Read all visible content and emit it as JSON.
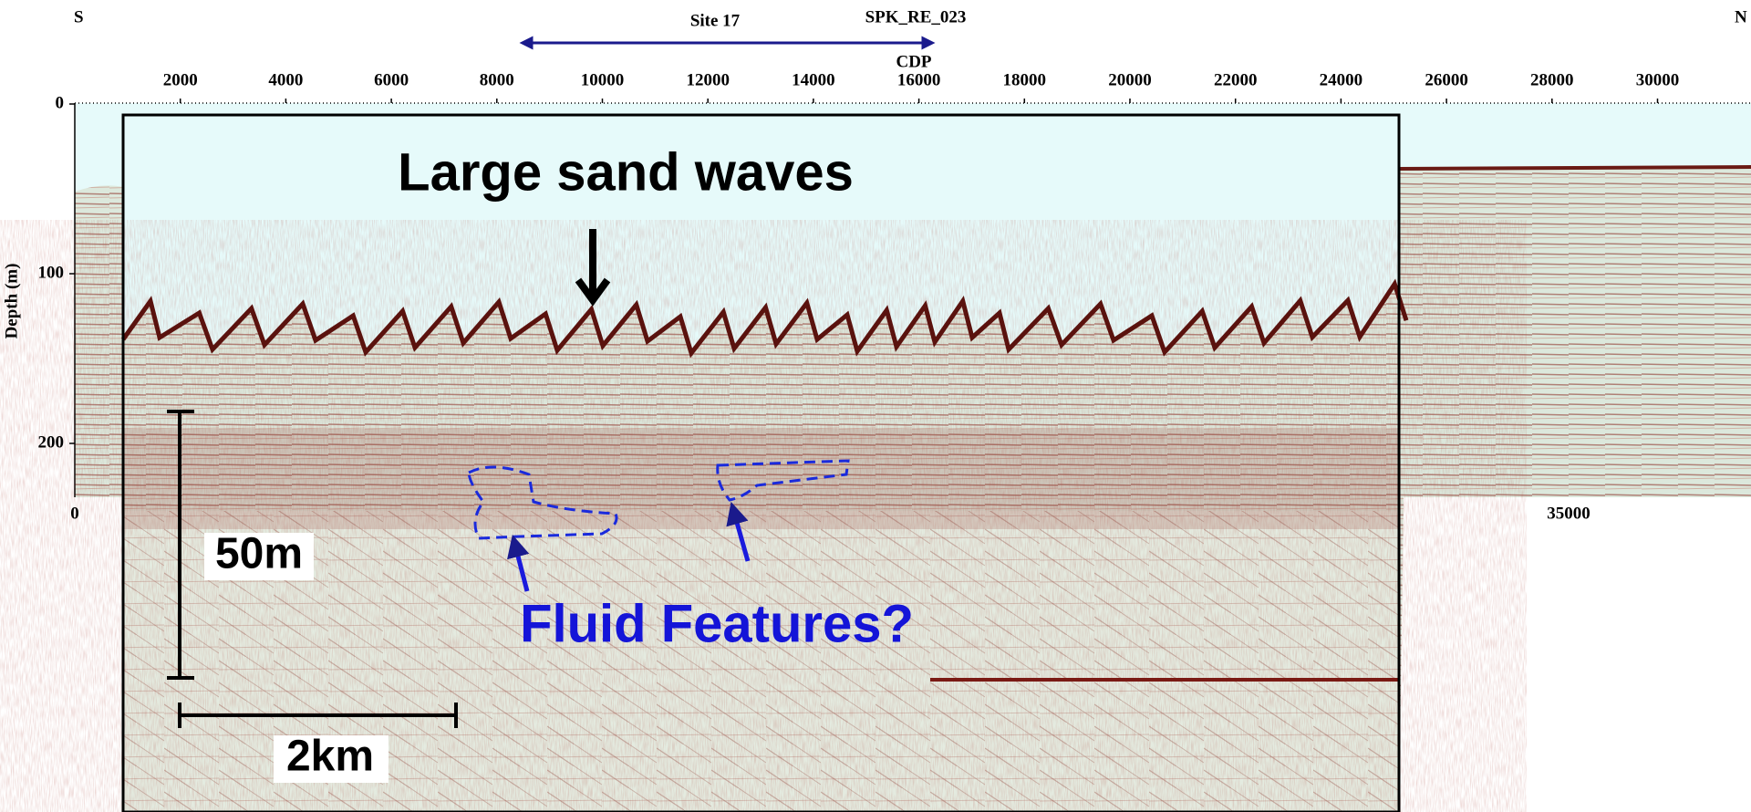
{
  "header": {
    "left": "S",
    "right": "N",
    "site": "Site 17",
    "line": "SPK_RE_023",
    "axis": "CDP"
  },
  "cdp_ticks": [
    2000,
    4000,
    6000,
    8000,
    10000,
    12000,
    14000,
    16000,
    18000,
    20000,
    22000,
    24000,
    26000,
    28000,
    30000
  ],
  "depth_axis": {
    "label": "Depth (m)",
    "ticks": [
      0,
      100,
      200
    ]
  },
  "bottom_ticks": [
    0,
    35000
  ],
  "annotations": {
    "title": "Large sand waves",
    "fluid": "Fluid Features?",
    "vertical_scale": "50m",
    "horizontal_scale": "2km"
  }
}
